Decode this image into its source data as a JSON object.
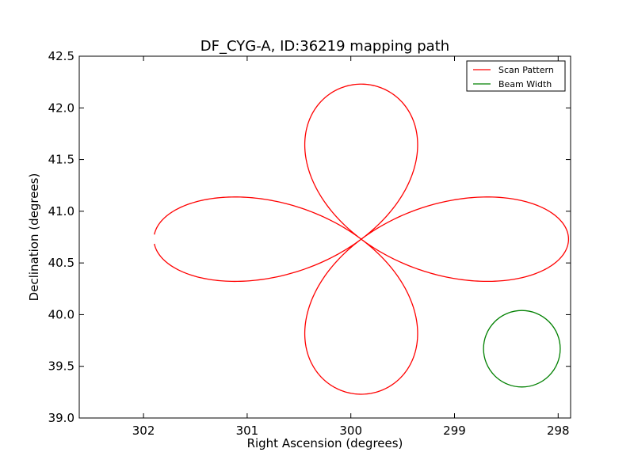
{
  "chart_data": {
    "type": "line",
    "title": "DF_CYG-A, ID:36219 mapping path",
    "xlabel": "Right Ascension (degrees)",
    "ylabel": "Declination (degrees)",
    "xlim": [
      302.62,
      297.88
    ],
    "ylim": [
      39.0,
      42.5
    ],
    "x_reversed": true,
    "grid": false,
    "legend_position": "upper-right",
    "xticks": [
      302,
      301,
      300,
      299,
      298
    ],
    "xtick_labels": [
      "302",
      "301",
      "300",
      "299",
      "298"
    ],
    "yticks": [
      39.0,
      39.5,
      40.0,
      40.5,
      41.0,
      41.5,
      42.0,
      42.5
    ],
    "ytick_labels": [
      "39.0",
      "39.5",
      "40.0",
      "40.5",
      "41.0",
      "41.5",
      "42.0",
      "42.5"
    ],
    "scan_center": {
      "ra": 299.9,
      "dec": 40.73
    },
    "series": [
      {
        "name": "Scan Pattern",
        "color": "#ff0000",
        "description": "Four-lobed rose curve centred on the target",
        "lobe_extent_ra_deg": 2.0,
        "lobe_extent_dec_deg": 1.5,
        "start_point": {
          "ra": 301.87,
          "dec": 40.73
        }
      },
      {
        "name": "Beam Width",
        "color": "#008000",
        "center": {
          "ra": 298.35,
          "dec": 39.67
        },
        "radius_ra_deg": 0.37,
        "radius_dec_deg": 0.37
      }
    ]
  }
}
